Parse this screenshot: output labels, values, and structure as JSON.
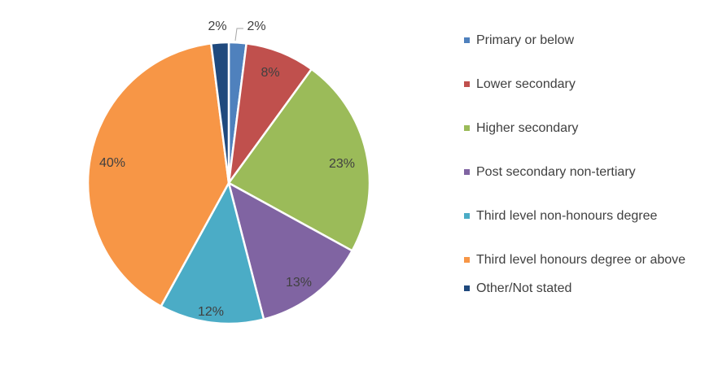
{
  "chart_data": {
    "type": "pie",
    "title": "",
    "legend_position": "right",
    "slices": [
      {
        "label": "Primary or below",
        "value": 2,
        "display": "2%",
        "color": "#4F81BD"
      },
      {
        "label": "Lower secondary",
        "value": 8,
        "display": "8%",
        "color": "#C0504D"
      },
      {
        "label": "Higher secondary",
        "value": 23,
        "display": "23%",
        "color": "#9BBB59"
      },
      {
        "label": "Post secondary non-tertiary",
        "value": 13,
        "display": "13%",
        "color": "#8064A2"
      },
      {
        "label": "Third level non-honours degree",
        "value": 12,
        "display": "12%",
        "color": "#4BACC6"
      },
      {
        "label": "Third level honours degree or above",
        "value": 40,
        "display": "40%",
        "color": "#F79646"
      },
      {
        "label": "Other/Not stated",
        "value": 2,
        "display": "2%",
        "color": "#1F497D"
      }
    ]
  }
}
